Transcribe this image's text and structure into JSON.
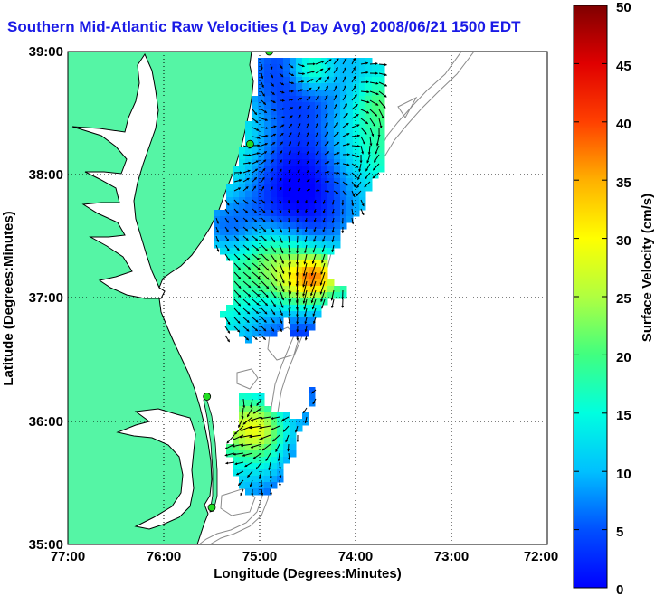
{
  "title": "Southern Mid-Atlantic Raw Velocities (1 Day Avg) 2008/06/21 1500 EDT",
  "xlabel": "Longitude (Degrees:Minutes)",
  "ylabel": "Latitude (Degrees:Minutes)",
  "colorbar_label": "Surface Velocity (cm/s)",
  "x_ticks": [
    "77:00",
    "76:00",
    "75:00",
    "74:00",
    "73:00",
    "72:00"
  ],
  "y_ticks": [
    "39:00",
    "38:00",
    "37:00",
    "36:00",
    "35:00"
  ],
  "colorbar_ticks": [
    "0",
    "5",
    "10",
    "15",
    "20",
    "25",
    "30",
    "35",
    "40",
    "45",
    "50"
  ],
  "colors": {
    "land": "#55f5a5",
    "title": "#1a1ae6",
    "bathymetry": "#8a8a8a",
    "station": "#22dd22"
  },
  "map": {
    "lon_range": [
      -77,
      -72
    ],
    "lat_range": [
      35,
      39
    ],
    "colorbar_range": [
      0,
      50
    ],
    "grid": "dotted",
    "colormap": "jet",
    "stations": [
      {
        "lon": -74.9,
        "lat": 39.0
      },
      {
        "lon": -75.1,
        "lat": 38.25
      },
      {
        "lon": -75.55,
        "lat": 36.2
      },
      {
        "lon": -75.5,
        "lat": 35.3
      }
    ]
  }
}
